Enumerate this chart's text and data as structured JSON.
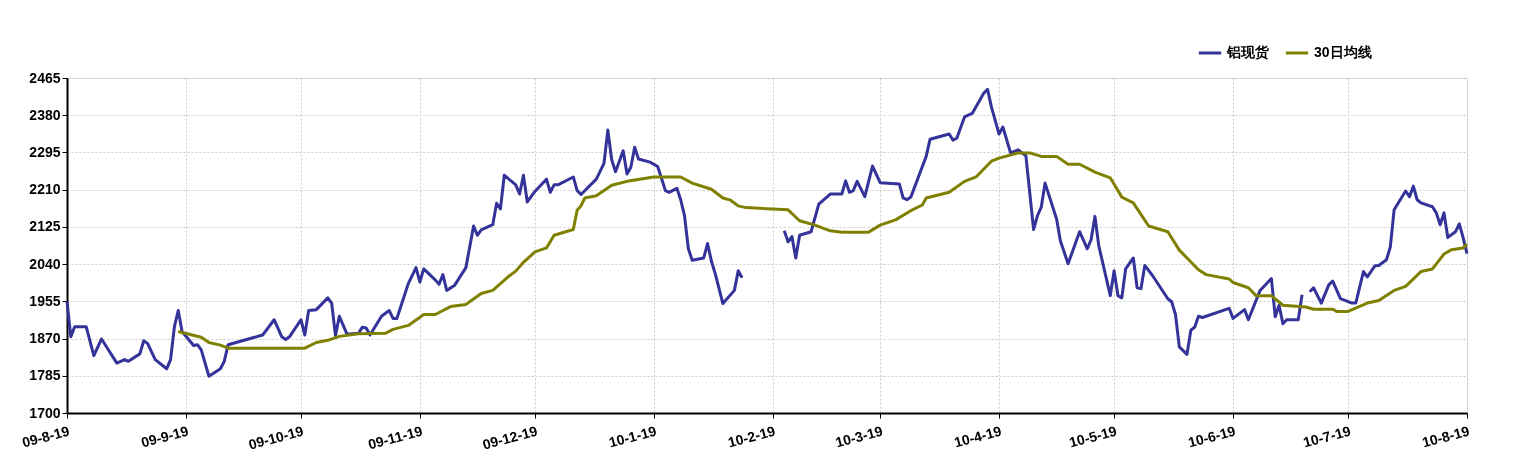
{
  "chart_data": {
    "type": "line",
    "xlim": [
      "2009-08-19",
      "2010-08-19"
    ],
    "xticks": [
      {
        "value": "2009-08-19",
        "label": "09-8-19"
      },
      {
        "value": "2009-09-19",
        "label": "09-9-19"
      },
      {
        "value": "2009-10-19",
        "label": "09-10-19"
      },
      {
        "value": "2009-11-19",
        "label": "09-11-19"
      },
      {
        "value": "2009-12-19",
        "label": "09-12-19"
      },
      {
        "value": "2010-01-19",
        "label": "10-1-19"
      },
      {
        "value": "2010-02-19",
        "label": "10-2-19"
      },
      {
        "value": "2010-03-19",
        "label": "10-3-19"
      },
      {
        "value": "2010-04-19",
        "label": "10-4-19"
      },
      {
        "value": "2010-05-19",
        "label": "10-5-19"
      },
      {
        "value": "2010-06-19",
        "label": "10-6-19"
      },
      {
        "value": "2010-07-19",
        "label": "10-7-19"
      },
      {
        "value": "2010-08-19",
        "label": "10-8-19"
      }
    ],
    "ylim": [
      1700,
      2465
    ],
    "yticks": [
      1700,
      1785,
      1870,
      1955,
      2040,
      2125,
      2210,
      2295,
      2380,
      2465
    ],
    "grid": true,
    "legend": "top right",
    "series": [
      {
        "name": "铝现货",
        "color": "#333399",
        "x": [
          "2009-08-19",
          "2009-08-20",
          "2009-08-21",
          "2009-08-24",
          "2009-08-26",
          "2009-08-28",
          "2009-09-01",
          "2009-09-03",
          "2009-09-04",
          "2009-09-07",
          "2009-09-08",
          "2009-09-09",
          "2009-09-11",
          "2009-09-14",
          "2009-09-15",
          "2009-09-16",
          "2009-09-17",
          "2009-09-18",
          "2009-09-21",
          "2009-09-22",
          "2009-09-23",
          "2009-09-25",
          "2009-09-28",
          "2009-09-29",
          "2009-09-30",
          "2009-10-09",
          "2009-10-12",
          "2009-10-14",
          "2009-10-15",
          "2009-10-16",
          "2009-10-19",
          "2009-10-20",
          "2009-10-21",
          "2009-10-23",
          "2009-10-26",
          "2009-10-27",
          "2009-10-28",
          "2009-10-29",
          "2009-10-31",
          "2009-11-03",
          "2009-11-04",
          "2009-11-05",
          "2009-11-06",
          "2009-11-09",
          "2009-11-11",
          "2009-11-12",
          "2009-11-13",
          "2009-11-16",
          "2009-11-18",
          "2009-11-19",
          "2009-11-20",
          "2009-11-23",
          "2009-11-24",
          "2009-11-25",
          "2009-11-26",
          "2009-11-28",
          "2009-12-01",
          "2009-12-03",
          "2009-12-04",
          "2009-12-05",
          "2009-12-08",
          "2009-12-09",
          "2009-12-10",
          "2009-12-11",
          "2009-12-14",
          "2009-12-15",
          "2009-12-16",
          "2009-12-17",
          "2009-12-19",
          "2009-12-22",
          "2009-12-23",
          "2009-12-24",
          "2009-12-25",
          "2009-12-29",
          "2009-12-30",
          "2009-12-31",
          "2010-01-04",
          "2010-01-06",
          "2010-01-07",
          "2010-01-08",
          "2010-01-09",
          "2010-01-11",
          "2010-01-12",
          "2010-01-13",
          "2010-01-14",
          "2010-01-15",
          "2010-01-18",
          "2010-01-20",
          "2010-01-22",
          "2010-01-23",
          "2010-01-25",
          "2010-01-26",
          "2010-01-27",
          "2010-01-28",
          "2010-01-29",
          "2010-02-01",
          "2010-02-02",
          "2010-02-03",
          "2010-02-04",
          "2010-02-06",
          "2010-02-09",
          "2010-02-10",
          "2010-02-11",
          "2010-02-17",
          "2010-02-22",
          "2010-02-23",
          "2010-02-24",
          "2010-02-25",
          "2010-02-26",
          "2010-03-01",
          "2010-03-03",
          "2010-03-06",
          "2010-03-09",
          "2010-03-10",
          "2010-03-11",
          "2010-03-12",
          "2010-03-13",
          "2010-03-15",
          "2010-03-17",
          "2010-03-19",
          "2010-03-24",
          "2010-03-25",
          "2010-03-26",
          "2010-03-27",
          "2010-03-30",
          "2010-03-31",
          "2010-04-01",
          "2010-04-06",
          "2010-04-07",
          "2010-04-08",
          "2010-04-10",
          "2010-04-12",
          "2010-04-15",
          "2010-04-16",
          "2010-04-17",
          "2010-04-19",
          "2010-04-20",
          "2010-04-22",
          "2010-04-24",
          "2010-04-26",
          "2010-04-28",
          "2010-04-29",
          "2010-04-30",
          "2010-05-01",
          "2010-05-04",
          "2010-05-05",
          "2010-05-07",
          "2010-05-10",
          "2010-05-12",
          "2010-05-13",
          "2010-05-14",
          "2010-05-15",
          "2010-05-18",
          "2010-05-19",
          "2010-05-20",
          "2010-05-21",
          "2010-05-22",
          "2010-05-24",
          "2010-05-25",
          "2010-05-26",
          "2010-05-27",
          "2010-05-29",
          "2010-06-02",
          "2010-06-03",
          "2010-06-04",
          "2010-06-05",
          "2010-06-07",
          "2010-06-08",
          "2010-06-09",
          "2010-06-10",
          "2010-06-11",
          "2010-06-18",
          "2010-06-19",
          "2010-06-22",
          "2010-06-23",
          "2010-06-26",
          "2010-06-29",
          "2010-06-30",
          "2010-07-01",
          "2010-07-02",
          "2010-07-03",
          "2010-07-06",
          "2010-07-07",
          "2010-07-08",
          "2010-07-09",
          "2010-07-10",
          "2010-07-12",
          "2010-07-14",
          "2010-07-15",
          "2010-07-17",
          "2010-07-20",
          "2010-07-21",
          "2010-07-23",
          "2010-07-24",
          "2010-07-26",
          "2010-07-27",
          "2010-07-29",
          "2010-07-30",
          "2010-07-31",
          "2010-08-03",
          "2010-08-04",
          "2010-08-05",
          "2010-08-06",
          "2010-08-07",
          "2010-08-10",
          "2010-08-11",
          "2010-08-12",
          "2010-08-13",
          "2010-08-14",
          "2010-08-16",
          "2010-08-17",
          "2010-08-18",
          "2010-08-19"
        ],
        "values": [
          1955,
          1874,
          1897,
          1897,
          1831,
          1869,
          1814,
          1822,
          1818,
          1835,
          1865,
          1859,
          1822,
          1801,
          1822,
          1897,
          1934,
          1886,
          1854,
          1856,
          1844,
          1784,
          1801,
          1818,
          1856,
          1878,
          1913,
          1874,
          1868,
          1874,
          1913,
          1878,
          1934,
          1936,
          1963,
          1951,
          1877,
          1921,
          1880,
          1882,
          1896,
          1894,
          1878,
          1921,
          1934,
          1916,
          1916,
          1996,
          2032,
          1999,
          2029,
          2004,
          1994,
          2016,
          1980,
          1991,
          2032,
          2127,
          2106,
          2118,
          2130,
          2179,
          2166,
          2243,
          2221,
          2200,
          2243,
          2182,
          2206,
          2234,
          2204,
          2221,
          2221,
          2239,
          2208,
          2199,
          2234,
          2270,
          2346,
          2279,
          2251,
          2299,
          2246,
          2261,
          2307,
          2280,
          2273,
          2263,
          2208,
          2204,
          2213,
          2187,
          2150,
          2075,
          2049,
          2054,
          2087,
          2047,
          2018,
          1950,
          1980,
          2025,
          2009,
          null,
          2116,
          2091,
          2103,
          2054,
          2106,
          2114,
          2177,
          2200,
          2200,
          2230,
          2204,
          2208,
          2229,
          2194,
          2264,
          2226,
          2223,
          2191,
          2187,
          2193,
          2263,
          2286,
          2325,
          2337,
          2323,
          2328,
          2376,
          2384,
          2430,
          2439,
          2399,
          2337,
          2353,
          2294,
          2301,
          2287,
          2119,
          2150,
          2170,
          2225,
          2143,
          2093,
          2041,
          2114,
          2075,
          2096,
          2149,
          2082,
          1968,
          2025,
          1968,
          1963,
          2029,
          2054,
          1986,
          1984,
          2037,
          2014,
          1961,
          1954,
          1925,
          1851,
          1834,
          1889,
          1896,
          1921,
          1918,
          1939,
          1916,
          1936,
          1913,
          1979,
          2007,
          1920,
          1946,
          1904,
          1913,
          1913,
          1970,
          null,
          1977,
          1986,
          1951,
          1993,
          2001,
          1961,
          1951,
          1951,
          2023,
          2011,
          2036,
          2037,
          2050,
          2079,
          2164,
          2207,
          2194,
          2218,
          2187,
          2180,
          2171,
          2157,
          2130,
          2157,
          2101,
          2114,
          2132,
          2100,
          2064
        ]
      },
      {
        "name": "30日均线",
        "color": "#808000",
        "x": [
          "2009-09-17",
          "2009-09-23",
          "2009-09-25",
          "2009-09-28",
          "2009-09-30",
          "2009-10-20",
          "2009-10-23",
          "2009-10-26",
          "2009-10-29",
          "2009-11-03",
          "2009-11-10",
          "2009-11-12",
          "2009-11-16",
          "2009-11-20",
          "2009-11-23",
          "2009-11-27",
          "2009-12-01",
          "2009-12-05",
          "2009-12-08",
          "2009-12-12",
          "2009-12-14",
          "2009-12-16",
          "2009-12-19",
          "2009-12-22",
          "2009-12-24",
          "2009-12-29",
          "2009-12-30",
          "2009-12-31",
          "2010-01-01",
          "2010-01-04",
          "2010-01-08",
          "2010-01-12",
          "2010-01-19",
          "2010-01-26",
          "2010-01-29",
          "2010-02-03",
          "2010-02-06",
          "2010-02-08",
          "2010-02-10",
          "2010-02-12",
          "2010-02-23",
          "2010-02-26",
          "2010-03-02",
          "2010-03-06",
          "2010-03-09",
          "2010-03-16",
          "2010-03-19",
          "2010-03-23",
          "2010-03-27",
          "2010-03-30",
          "2010-03-31",
          "2010-04-06",
          "2010-04-10",
          "2010-04-13",
          "2010-04-17",
          "2010-04-19",
          "2010-04-24",
          "2010-04-27",
          "2010-04-30",
          "2010-05-04",
          "2010-05-07",
          "2010-05-10",
          "2010-05-14",
          "2010-05-18",
          "2010-05-21",
          "2010-05-24",
          "2010-05-28",
          "2010-06-02",
          "2010-06-05",
          "2010-06-07",
          "2010-06-10",
          "2010-06-12",
          "2010-06-18",
          "2010-06-19",
          "2010-06-23",
          "2010-06-25",
          "2010-06-29",
          "2010-07-02",
          "2010-07-08",
          "2010-07-10",
          "2010-07-15",
          "2010-07-16",
          "2010-07-19",
          "2010-07-24",
          "2010-07-27",
          "2010-07-31",
          "2010-08-03",
          "2010-08-07",
          "2010-08-10",
          "2010-08-13",
          "2010-08-15",
          "2010-08-18",
          "2010-08-19"
        ],
        "values": [
          1886,
          1873,
          1861,
          1855,
          1848,
          1848,
          1861,
          1866,
          1875,
          1881,
          1882,
          1891,
          1900,
          1925,
          1925,
          1943,
          1948,
          1973,
          1980,
          2011,
          2024,
          2044,
          2068,
          2077,
          2106,
          2119,
          2163,
          2173,
          2191,
          2196,
          2220,
          2229,
          2239,
          2239,
          2225,
          2211,
          2191,
          2186,
          2173,
          2169,
          2164,
          2139,
          2129,
          2116,
          2113,
          2113,
          2129,
          2141,
          2162,
          2175,
          2191,
          2204,
          2229,
          2239,
          2275,
          2282,
          2294,
          2294,
          2286,
          2286,
          2268,
          2268,
          2250,
          2237,
          2193,
          2180,
          2127,
          2114,
          2072,
          2054,
          2027,
          2016,
          2006,
          1998,
          1986,
          1968,
          1968,
          1946,
          1942,
          1937,
          1937,
          1932,
          1932,
          1951,
          1957,
          1980,
          1989,
          2023,
          2029,
          2063,
          2073,
          2077,
          2086
        ]
      }
    ]
  }
}
